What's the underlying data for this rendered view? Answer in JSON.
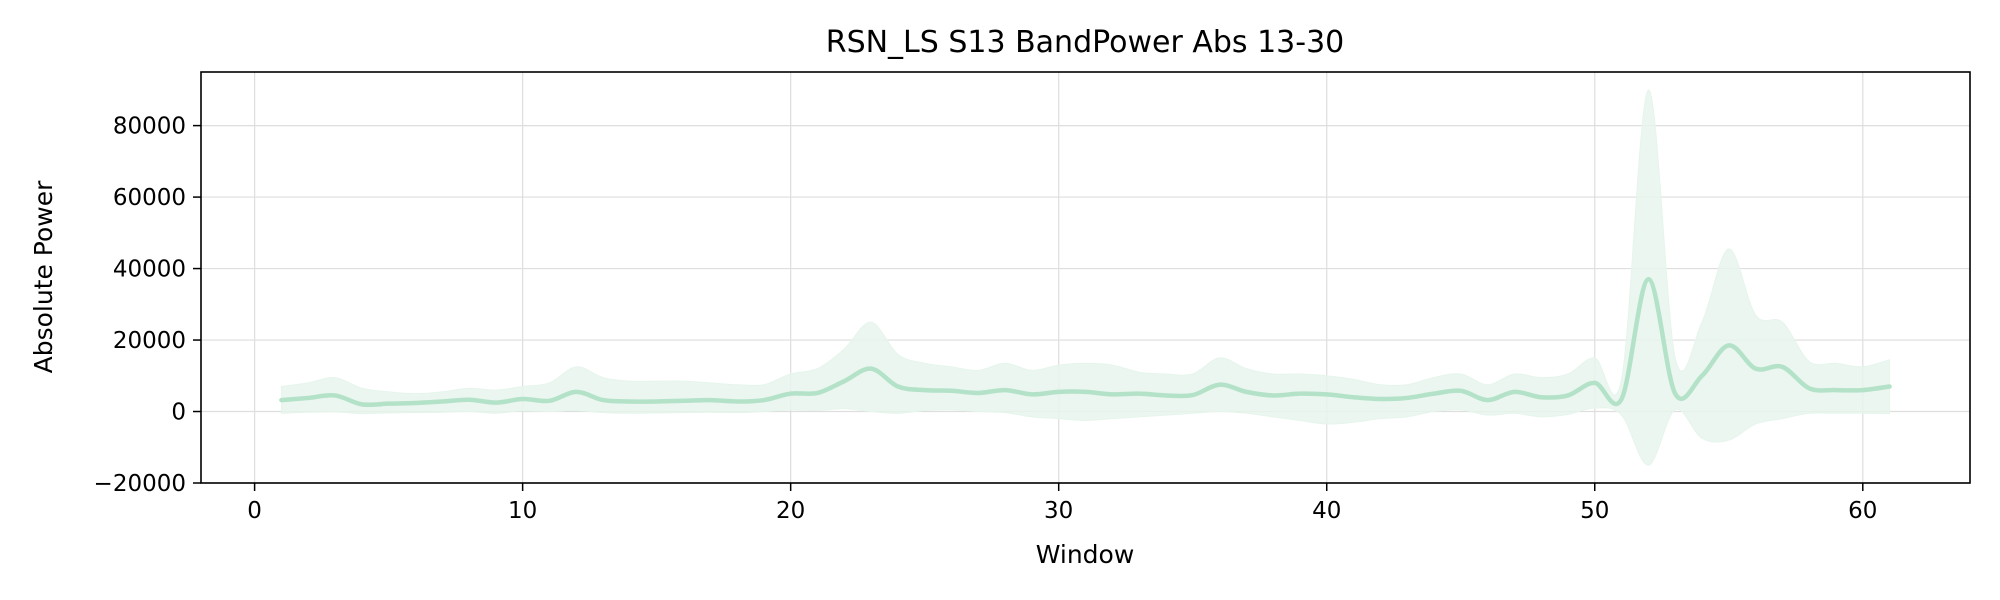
{
  "chart_data": {
    "type": "line",
    "title": "RSN_LS S13 BandPower Abs 13-30",
    "xlabel": "Window",
    "ylabel": "Absolute Power",
    "xlim": [
      -2,
      64
    ],
    "ylim": [
      -20000,
      95000
    ],
    "xticks": [
      0,
      10,
      20,
      30,
      40,
      50,
      60
    ],
    "yticks": [
      -20000,
      0,
      20000,
      40000,
      60000,
      80000
    ],
    "x_tick_labels": [
      "0",
      "10",
      "20",
      "30",
      "40",
      "50",
      "60"
    ],
    "y_tick_labels": [
      "−20000",
      "0",
      "20000",
      "40000",
      "60000",
      "80000"
    ],
    "grid": true,
    "legend": "none",
    "colors": {
      "line": "#b3e2c8",
      "band": "#e6f5ec",
      "grid": "#dedede"
    },
    "series": [
      {
        "x": [
          1,
          2,
          3,
          4,
          5,
          6,
          7,
          8,
          9,
          10,
          11,
          12,
          13,
          14,
          15,
          16,
          17,
          18,
          19,
          20,
          21,
          22,
          23,
          24,
          25,
          26,
          27,
          28,
          29,
          30,
          31,
          32,
          33,
          34,
          35,
          36,
          37,
          38,
          39,
          40,
          41,
          42,
          43,
          44,
          45,
          46,
          47,
          48,
          49,
          50,
          51,
          52,
          53,
          54,
          55,
          56,
          57,
          58,
          59,
          60,
          61
        ],
        "mean": [
          3200,
          3800,
          4500,
          2000,
          2200,
          2400,
          2800,
          3300,
          2500,
          3500,
          3000,
          5500,
          3200,
          2800,
          2800,
          3000,
          3200,
          2800,
          3200,
          5000,
          5200,
          8500,
          12000,
          7000,
          6000,
          5800,
          5200,
          6000,
          4800,
          5500,
          5500,
          4800,
          5000,
          4500,
          4600,
          7500,
          5500,
          4500,
          5000,
          4800,
          4000,
          3500,
          3800,
          5000,
          5800,
          3200,
          5500,
          4000,
          4500,
          8000,
          3500,
          37000,
          5000,
          10000,
          18500,
          12000,
          12500,
          6500,
          6000,
          6000,
          7000
        ],
        "upper": [
          7000,
          8000,
          9500,
          6500,
          5500,
          5000,
          5500,
          6500,
          6000,
          7000,
          8000,
          12500,
          9500,
          8500,
          8500,
          8500,
          8000,
          7500,
          7500,
          10500,
          12000,
          17500,
          25000,
          16000,
          13500,
          12500,
          11500,
          13500,
          11500,
          13000,
          13500,
          13000,
          11000,
          10500,
          10500,
          15000,
          12000,
          10500,
          10500,
          10000,
          9000,
          7500,
          7500,
          9500,
          10500,
          7500,
          10500,
          9500,
          10500,
          15000,
          9000,
          90000,
          15000,
          25000,
          45500,
          27000,
          25000,
          14000,
          13500,
          12500,
          14500
        ],
        "lower": [
          -500,
          -200,
          -100,
          -600,
          -400,
          -300,
          -200,
          0,
          -500,
          200,
          0,
          300,
          -300,
          -500,
          -400,
          -300,
          -200,
          -300,
          0,
          500,
          300,
          800,
          0,
          -500,
          300,
          500,
          0,
          -300,
          -1500,
          -2000,
          -2500,
          -2000,
          -1500,
          -1000,
          -500,
          0,
          -500,
          -1500,
          -2500,
          -3500,
          -3000,
          -2000,
          -1500,
          0,
          500,
          -1000,
          -500,
          -1500,
          -800,
          1000,
          -1000,
          -15000,
          500,
          -7500,
          -8000,
          -3500,
          -2000,
          -500,
          -500,
          -500,
          -600
        ]
      }
    ]
  }
}
